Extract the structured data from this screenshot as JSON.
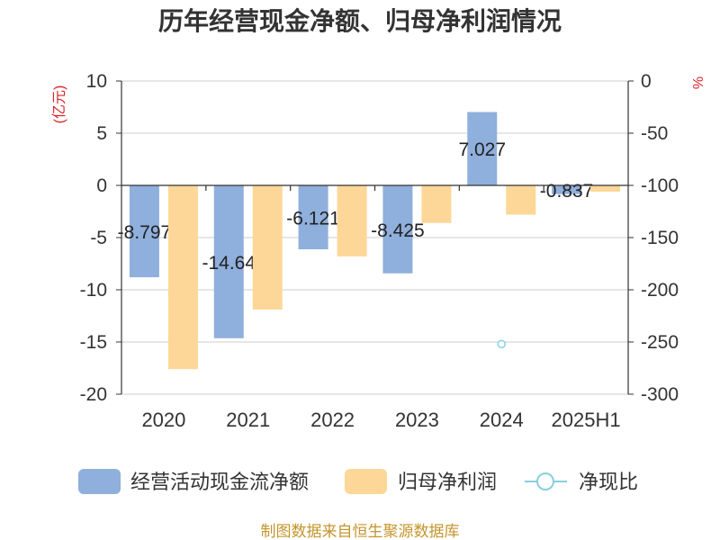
{
  "title": "历年经营现金净额、归母净利润情况",
  "footer": "制图数据来自恒生聚源数据库",
  "colors": {
    "cash_flow": "#8fafdc",
    "net_profit": "#fdd797",
    "ratio": "#86cfe0",
    "axis_unit": "#d9262a",
    "footer": "#c4952c",
    "grid": "#cccccc",
    "axis": "#333333"
  },
  "chart_data": {
    "type": "bar",
    "title": "历年经营现金净额、归母净利润情况",
    "categories": [
      "2020",
      "2021",
      "2022",
      "2023",
      "2024",
      "2025H1"
    ],
    "y_left": {
      "label": "(亿元)",
      "range": [
        -20,
        10
      ],
      "ticks": [
        10,
        5,
        0,
        -5,
        -10,
        -15,
        -20
      ]
    },
    "y_right": {
      "label": "%",
      "range": [
        -300,
        0
      ],
      "ticks": [
        0,
        -50,
        -100,
        -150,
        -200,
        -250,
        -300
      ]
    },
    "series": [
      {
        "name": "经营活动现金流净额",
        "type": "bar",
        "axis": "left",
        "values": [
          -8.797,
          -14.64,
          -6.121,
          -8.425,
          7.027,
          -0.837
        ],
        "show_labels": true
      },
      {
        "name": "归母净利润",
        "type": "bar",
        "axis": "left",
        "values": [
          -17.6,
          -11.9,
          -6.8,
          -3.6,
          -2.8,
          -0.6
        ],
        "show_labels": false
      },
      {
        "name": "净现比",
        "type": "line",
        "axis": "right",
        "values": [
          null,
          null,
          null,
          null,
          -252,
          null
        ],
        "show_labels": false
      }
    ],
    "grid": true,
    "legend_position": "bottom"
  }
}
